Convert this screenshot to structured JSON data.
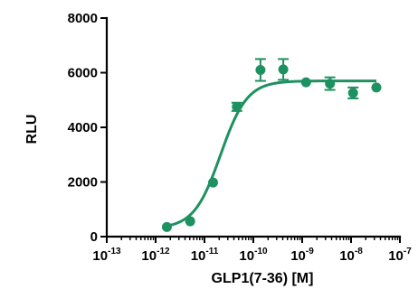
{
  "chart_data": {
    "type": "scatter",
    "title": "",
    "xlabel": "GLP1(7-36) [M]",
    "ylabel": "RLU",
    "x_scale": "log",
    "xlim": [
      1e-13,
      1e-07
    ],
    "ylim": [
      0,
      8000
    ],
    "x_ticks": [
      {
        "base": "10",
        "exp": "-13",
        "value": 1e-13
      },
      {
        "base": "10",
        "exp": "-12",
        "value": 1e-12
      },
      {
        "base": "10",
        "exp": "-11",
        "value": 1e-11
      },
      {
        "base": "10",
        "exp": "-10",
        "value": 1e-10
      },
      {
        "base": "10",
        "exp": "-9",
        "value": 1e-09
      },
      {
        "base": "10",
        "exp": "-8",
        "value": 1e-08
      },
      {
        "base": "10",
        "exp": "-7",
        "value": 1e-07
      }
    ],
    "y_ticks": [
      {
        "label": "0",
        "value": 0
      },
      {
        "label": "2000",
        "value": 2000
      },
      {
        "label": "4000",
        "value": 4000
      },
      {
        "label": "6000",
        "value": 6000
      },
      {
        "label": "8000",
        "value": 8000
      }
    ],
    "grid": false,
    "color": "#1e9160",
    "series": [
      {
        "points": [
          {
            "x": 1.7e-12,
            "y": 350,
            "err": 0
          },
          {
            "x": 5.1e-12,
            "y": 560,
            "err": 0
          },
          {
            "x": 1.5e-11,
            "y": 1980,
            "err": 0
          },
          {
            "x": 4.6e-11,
            "y": 4750,
            "err": 150
          },
          {
            "x": 1.4e-10,
            "y": 6100,
            "err": 400
          },
          {
            "x": 4.1e-10,
            "y": 6120,
            "err": 380
          },
          {
            "x": 1.2e-09,
            "y": 5650,
            "err": 0
          },
          {
            "x": 3.7e-09,
            "y": 5600,
            "err": 230
          },
          {
            "x": 1.1e-08,
            "y": 5260,
            "err": 200
          },
          {
            "x": 3.3e-08,
            "y": 5460,
            "err": 0
          }
        ],
        "fit": {
          "model": "sigmoidal dose-response",
          "bottom": 300,
          "top": 5700,
          "log_ec50": -10.67,
          "hill": 1.6
        }
      }
    ]
  }
}
